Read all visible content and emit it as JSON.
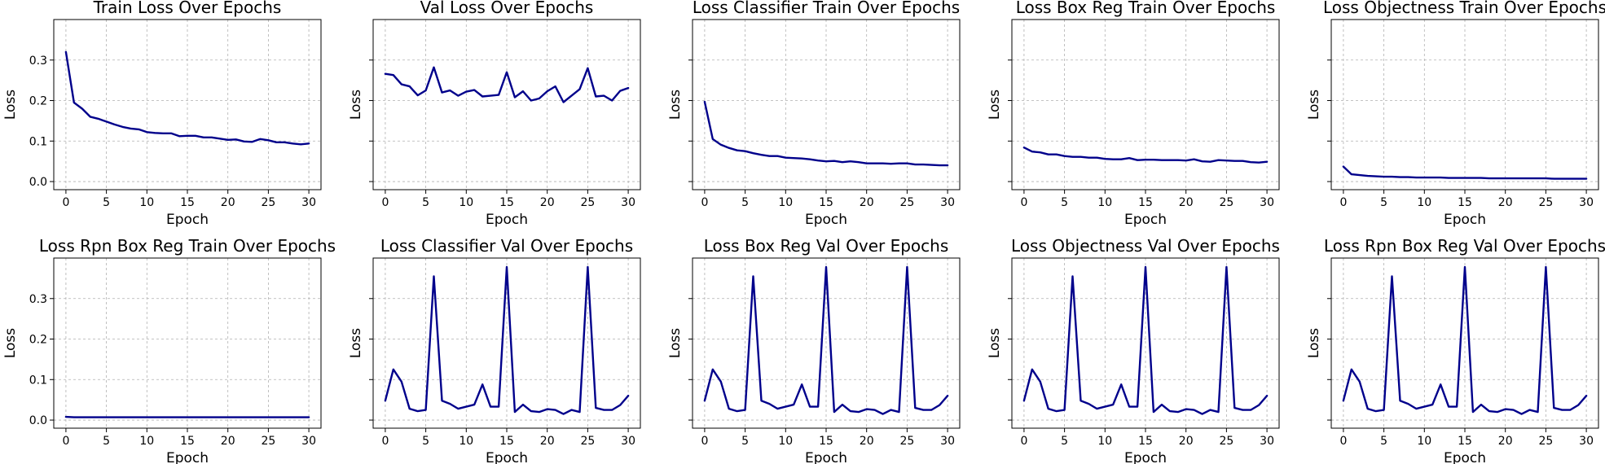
{
  "figure": {
    "line_color": "#00008b",
    "grid": true,
    "sharey": true
  },
  "chart_data": [
    {
      "type": "line",
      "title": "Train Loss Over Epochs",
      "xlabel": "Epoch",
      "ylabel": "Loss",
      "xlim": [
        -1.5,
        31.5
      ],
      "ylim": [
        -0.02,
        0.4
      ],
      "x": [
        0,
        1,
        2,
        3,
        4,
        5,
        6,
        7,
        8,
        9,
        10,
        11,
        12,
        13,
        14,
        15,
        16,
        17,
        18,
        19,
        20,
        21,
        22,
        23,
        24,
        25,
        26,
        27,
        28,
        29,
        30
      ],
      "xticks": [
        0,
        5,
        10,
        15,
        20,
        25,
        30
      ],
      "yticks": [
        0.0,
        0.1,
        0.2,
        0.3
      ],
      "xtick_labels": [
        "0",
        "5",
        "10",
        "15",
        "20",
        "25",
        "30"
      ],
      "ytick_labels": [
        "0.0",
        "0.1",
        "0.2",
        "0.3"
      ],
      "series": [
        {
          "values": [
            0.32,
            0.195,
            0.18,
            0.16,
            0.155,
            0.148,
            0.141,
            0.135,
            0.131,
            0.129,
            0.122,
            0.12,
            0.119,
            0.119,
            0.112,
            0.113,
            0.113,
            0.109,
            0.109,
            0.106,
            0.103,
            0.104,
            0.099,
            0.098,
            0.105,
            0.102,
            0.097,
            0.097,
            0.094,
            0.092,
            0.094
          ]
        }
      ]
    },
    {
      "type": "line",
      "title": "Val Loss Over Epochs",
      "xlabel": "Epoch",
      "ylabel": "Loss",
      "xlim": [
        -1.5,
        31.5
      ],
      "ylim": [
        -0.02,
        0.4
      ],
      "x": [
        0,
        1,
        2,
        3,
        4,
        5,
        6,
        7,
        8,
        9,
        10,
        11,
        12,
        13,
        14,
        15,
        16,
        17,
        18,
        19,
        20,
        21,
        22,
        23,
        24,
        25,
        26,
        27,
        28,
        29,
        30
      ],
      "xticks": [
        0,
        5,
        10,
        15,
        20,
        25,
        30
      ],
      "yticks": [
        0.0,
        0.1,
        0.2,
        0.3
      ],
      "xtick_labels": [
        "0",
        "5",
        "10",
        "15",
        "20",
        "25",
        "30"
      ],
      "ytick_labels": [],
      "series": [
        {
          "values": [
            0.266,
            0.263,
            0.24,
            0.235,
            0.213,
            0.225,
            0.282,
            0.22,
            0.225,
            0.212,
            0.222,
            0.226,
            0.21,
            0.212,
            0.214,
            0.27,
            0.208,
            0.223,
            0.2,
            0.205,
            0.223,
            0.235,
            0.196,
            0.212,
            0.228,
            0.28,
            0.21,
            0.212,
            0.2,
            0.224,
            0.231
          ]
        }
      ]
    },
    {
      "type": "line",
      "title": "Loss Classifier Train Over Epochs",
      "xlabel": "Epoch",
      "ylabel": "Loss",
      "xlim": [
        -1.5,
        31.5
      ],
      "ylim": [
        -0.02,
        0.4
      ],
      "x": [
        0,
        1,
        2,
        3,
        4,
        5,
        6,
        7,
        8,
        9,
        10,
        11,
        12,
        13,
        14,
        15,
        16,
        17,
        18,
        19,
        20,
        21,
        22,
        23,
        24,
        25,
        26,
        27,
        28,
        29,
        30
      ],
      "xticks": [
        0,
        5,
        10,
        15,
        20,
        25,
        30
      ],
      "yticks": [
        0.0,
        0.1,
        0.2,
        0.3
      ],
      "xtick_labels": [
        "0",
        "5",
        "10",
        "15",
        "20",
        "25",
        "30"
      ],
      "ytick_labels": [],
      "series": [
        {
          "values": [
            0.197,
            0.105,
            0.091,
            0.083,
            0.077,
            0.075,
            0.07,
            0.066,
            0.063,
            0.063,
            0.059,
            0.058,
            0.057,
            0.055,
            0.052,
            0.05,
            0.051,
            0.048,
            0.05,
            0.048,
            0.045,
            0.045,
            0.045,
            0.044,
            0.045,
            0.045,
            0.042,
            0.042,
            0.041,
            0.04,
            0.04
          ]
        }
      ]
    },
    {
      "type": "line",
      "title": "Loss Box Reg Train Over Epochs",
      "xlabel": "Epoch",
      "ylabel": "Loss",
      "xlim": [
        -1.5,
        31.5
      ],
      "ylim": [
        -0.02,
        0.4
      ],
      "x": [
        0,
        1,
        2,
        3,
        4,
        5,
        6,
        7,
        8,
        9,
        10,
        11,
        12,
        13,
        14,
        15,
        16,
        17,
        18,
        19,
        20,
        21,
        22,
        23,
        24,
        25,
        26,
        27,
        28,
        29,
        30
      ],
      "xticks": [
        0,
        5,
        10,
        15,
        20,
        25,
        30
      ],
      "yticks": [
        0.0,
        0.1,
        0.2,
        0.3
      ],
      "xtick_labels": [
        "0",
        "5",
        "10",
        "15",
        "20",
        "25",
        "30"
      ],
      "ytick_labels": [],
      "series": [
        {
          "values": [
            0.084,
            0.074,
            0.072,
            0.067,
            0.067,
            0.063,
            0.061,
            0.061,
            0.059,
            0.059,
            0.056,
            0.055,
            0.055,
            0.058,
            0.053,
            0.054,
            0.054,
            0.053,
            0.053,
            0.053,
            0.052,
            0.055,
            0.05,
            0.049,
            0.053,
            0.052,
            0.051,
            0.051,
            0.048,
            0.047,
            0.049
          ]
        }
      ]
    },
    {
      "type": "line",
      "title": "Loss Objectness Train Over Epochs",
      "xlabel": "Epoch",
      "ylabel": "Loss",
      "xlim": [
        -1.5,
        31.5
      ],
      "ylim": [
        -0.02,
        0.4
      ],
      "x": [
        0,
        1,
        2,
        3,
        4,
        5,
        6,
        7,
        8,
        9,
        10,
        11,
        12,
        13,
        14,
        15,
        16,
        17,
        18,
        19,
        20,
        21,
        22,
        23,
        24,
        25,
        26,
        27,
        28,
        29,
        30
      ],
      "xticks": [
        0,
        5,
        10,
        15,
        20,
        25,
        30
      ],
      "yticks": [
        0.0,
        0.1,
        0.2,
        0.3
      ],
      "xtick_labels": [
        "0",
        "5",
        "10",
        "15",
        "20",
        "25",
        "30"
      ],
      "ytick_labels": [],
      "series": [
        {
          "values": [
            0.037,
            0.018,
            0.016,
            0.014,
            0.013,
            0.012,
            0.012,
            0.011,
            0.011,
            0.01,
            0.01,
            0.01,
            0.01,
            0.009,
            0.009,
            0.009,
            0.009,
            0.009,
            0.008,
            0.008,
            0.008,
            0.008,
            0.008,
            0.008,
            0.008,
            0.008,
            0.007,
            0.007,
            0.007,
            0.007,
            0.007
          ]
        }
      ]
    },
    {
      "type": "line",
      "title": "Loss Rpn Box Reg Train Over Epochs",
      "xlabel": "Epoch",
      "ylabel": "Loss",
      "xlim": [
        -1.5,
        31.5
      ],
      "ylim": [
        -0.02,
        0.4
      ],
      "x": [
        0,
        1,
        2,
        3,
        4,
        5,
        6,
        7,
        8,
        9,
        10,
        11,
        12,
        13,
        14,
        15,
        16,
        17,
        18,
        19,
        20,
        21,
        22,
        23,
        24,
        25,
        26,
        27,
        28,
        29,
        30
      ],
      "xticks": [
        0,
        5,
        10,
        15,
        20,
        25,
        30
      ],
      "yticks": [
        0.0,
        0.1,
        0.2,
        0.3
      ],
      "xtick_labels": [
        "0",
        "5",
        "10",
        "15",
        "20",
        "25",
        "30"
      ],
      "ytick_labels": [
        "0.0",
        "0.1",
        "0.2",
        "0.3"
      ],
      "series": [
        {
          "values": [
            0.008,
            0.007,
            0.007,
            0.007,
            0.007,
            0.007,
            0.007,
            0.007,
            0.007,
            0.007,
            0.007,
            0.007,
            0.007,
            0.007,
            0.007,
            0.007,
            0.007,
            0.007,
            0.007,
            0.007,
            0.007,
            0.007,
            0.007,
            0.007,
            0.007,
            0.007,
            0.007,
            0.007,
            0.007,
            0.007,
            0.007
          ]
        }
      ]
    },
    {
      "type": "line",
      "title": "Loss Classifier Val Over Epochs",
      "xlabel": "Epoch",
      "ylabel": "Loss",
      "xlim": [
        -1.5,
        31.5
      ],
      "ylim": [
        -0.02,
        0.4
      ],
      "x": [
        0,
        1,
        2,
        3,
        4,
        5,
        6,
        7,
        8,
        9,
        10,
        11,
        12,
        13,
        14,
        15,
        16,
        17,
        18,
        19,
        20,
        21,
        22,
        23,
        24,
        25,
        26,
        27,
        28,
        29,
        30
      ],
      "xticks": [
        0,
        5,
        10,
        15,
        20,
        25,
        30
      ],
      "yticks": [
        0.0,
        0.1,
        0.2,
        0.3
      ],
      "xtick_labels": [
        "0",
        "5",
        "10",
        "15",
        "20",
        "25",
        "30"
      ],
      "ytick_labels": [],
      "series": [
        {
          "values": [
            0.048,
            0.125,
            0.095,
            0.028,
            0.022,
            0.025,
            0.355,
            0.048,
            0.04,
            0.028,
            0.033,
            0.038,
            0.088,
            0.033,
            0.033,
            0.378,
            0.02,
            0.038,
            0.022,
            0.02,
            0.027,
            0.025,
            0.015,
            0.025,
            0.02,
            0.378,
            0.03,
            0.025,
            0.025,
            0.037,
            0.06
          ]
        }
      ]
    },
    {
      "type": "line",
      "title": "Loss Box Reg Val Over Epochs",
      "xlabel": "Epoch",
      "ylabel": "Loss",
      "xlim": [
        -1.5,
        31.5
      ],
      "ylim": [
        -0.02,
        0.4
      ],
      "x": [
        0,
        1,
        2,
        3,
        4,
        5,
        6,
        7,
        8,
        9,
        10,
        11,
        12,
        13,
        14,
        15,
        16,
        17,
        18,
        19,
        20,
        21,
        22,
        23,
        24,
        25,
        26,
        27,
        28,
        29,
        30
      ],
      "xticks": [
        0,
        5,
        10,
        15,
        20,
        25,
        30
      ],
      "yticks": [
        0.0,
        0.1,
        0.2,
        0.3
      ],
      "xtick_labels": [
        "0",
        "5",
        "10",
        "15",
        "20",
        "25",
        "30"
      ],
      "ytick_labels": [],
      "series": [
        {
          "values": [
            0.048,
            0.125,
            0.095,
            0.028,
            0.022,
            0.025,
            0.355,
            0.048,
            0.04,
            0.028,
            0.033,
            0.038,
            0.088,
            0.033,
            0.033,
            0.378,
            0.02,
            0.038,
            0.022,
            0.02,
            0.027,
            0.025,
            0.015,
            0.025,
            0.02,
            0.378,
            0.03,
            0.025,
            0.025,
            0.037,
            0.06
          ]
        }
      ]
    },
    {
      "type": "line",
      "title": "Loss Objectness Val Over Epochs",
      "xlabel": "Epoch",
      "ylabel": "Loss",
      "xlim": [
        -1.5,
        31.5
      ],
      "ylim": [
        -0.02,
        0.4
      ],
      "x": [
        0,
        1,
        2,
        3,
        4,
        5,
        6,
        7,
        8,
        9,
        10,
        11,
        12,
        13,
        14,
        15,
        16,
        17,
        18,
        19,
        20,
        21,
        22,
        23,
        24,
        25,
        26,
        27,
        28,
        29,
        30
      ],
      "xticks": [
        0,
        5,
        10,
        15,
        20,
        25,
        30
      ],
      "yticks": [
        0.0,
        0.1,
        0.2,
        0.3
      ],
      "xtick_labels": [
        "0",
        "5",
        "10",
        "15",
        "20",
        "25",
        "30"
      ],
      "ytick_labels": [],
      "series": [
        {
          "values": [
            0.048,
            0.125,
            0.095,
            0.028,
            0.022,
            0.025,
            0.355,
            0.048,
            0.04,
            0.028,
            0.033,
            0.038,
            0.088,
            0.033,
            0.033,
            0.378,
            0.02,
            0.038,
            0.022,
            0.02,
            0.027,
            0.025,
            0.015,
            0.025,
            0.02,
            0.378,
            0.03,
            0.025,
            0.025,
            0.037,
            0.06
          ]
        }
      ]
    },
    {
      "type": "line",
      "title": "Loss Rpn Box Reg Val Over Epochs",
      "xlabel": "Epoch",
      "ylabel": "Loss",
      "xlim": [
        -1.5,
        31.5
      ],
      "ylim": [
        -0.02,
        0.4
      ],
      "x": [
        0,
        1,
        2,
        3,
        4,
        5,
        6,
        7,
        8,
        9,
        10,
        11,
        12,
        13,
        14,
        15,
        16,
        17,
        18,
        19,
        20,
        21,
        22,
        23,
        24,
        25,
        26,
        27,
        28,
        29,
        30
      ],
      "xticks": [
        0,
        5,
        10,
        15,
        20,
        25,
        30
      ],
      "yticks": [
        0.0,
        0.1,
        0.2,
        0.3
      ],
      "xtick_labels": [
        "0",
        "5",
        "10",
        "15",
        "20",
        "25",
        "30"
      ],
      "ytick_labels": [],
      "series": [
        {
          "values": [
            0.048,
            0.125,
            0.095,
            0.028,
            0.022,
            0.025,
            0.355,
            0.048,
            0.04,
            0.028,
            0.033,
            0.038,
            0.088,
            0.033,
            0.033,
            0.378,
            0.02,
            0.038,
            0.022,
            0.02,
            0.027,
            0.025,
            0.015,
            0.025,
            0.02,
            0.378,
            0.03,
            0.025,
            0.025,
            0.037,
            0.06
          ]
        }
      ]
    }
  ]
}
